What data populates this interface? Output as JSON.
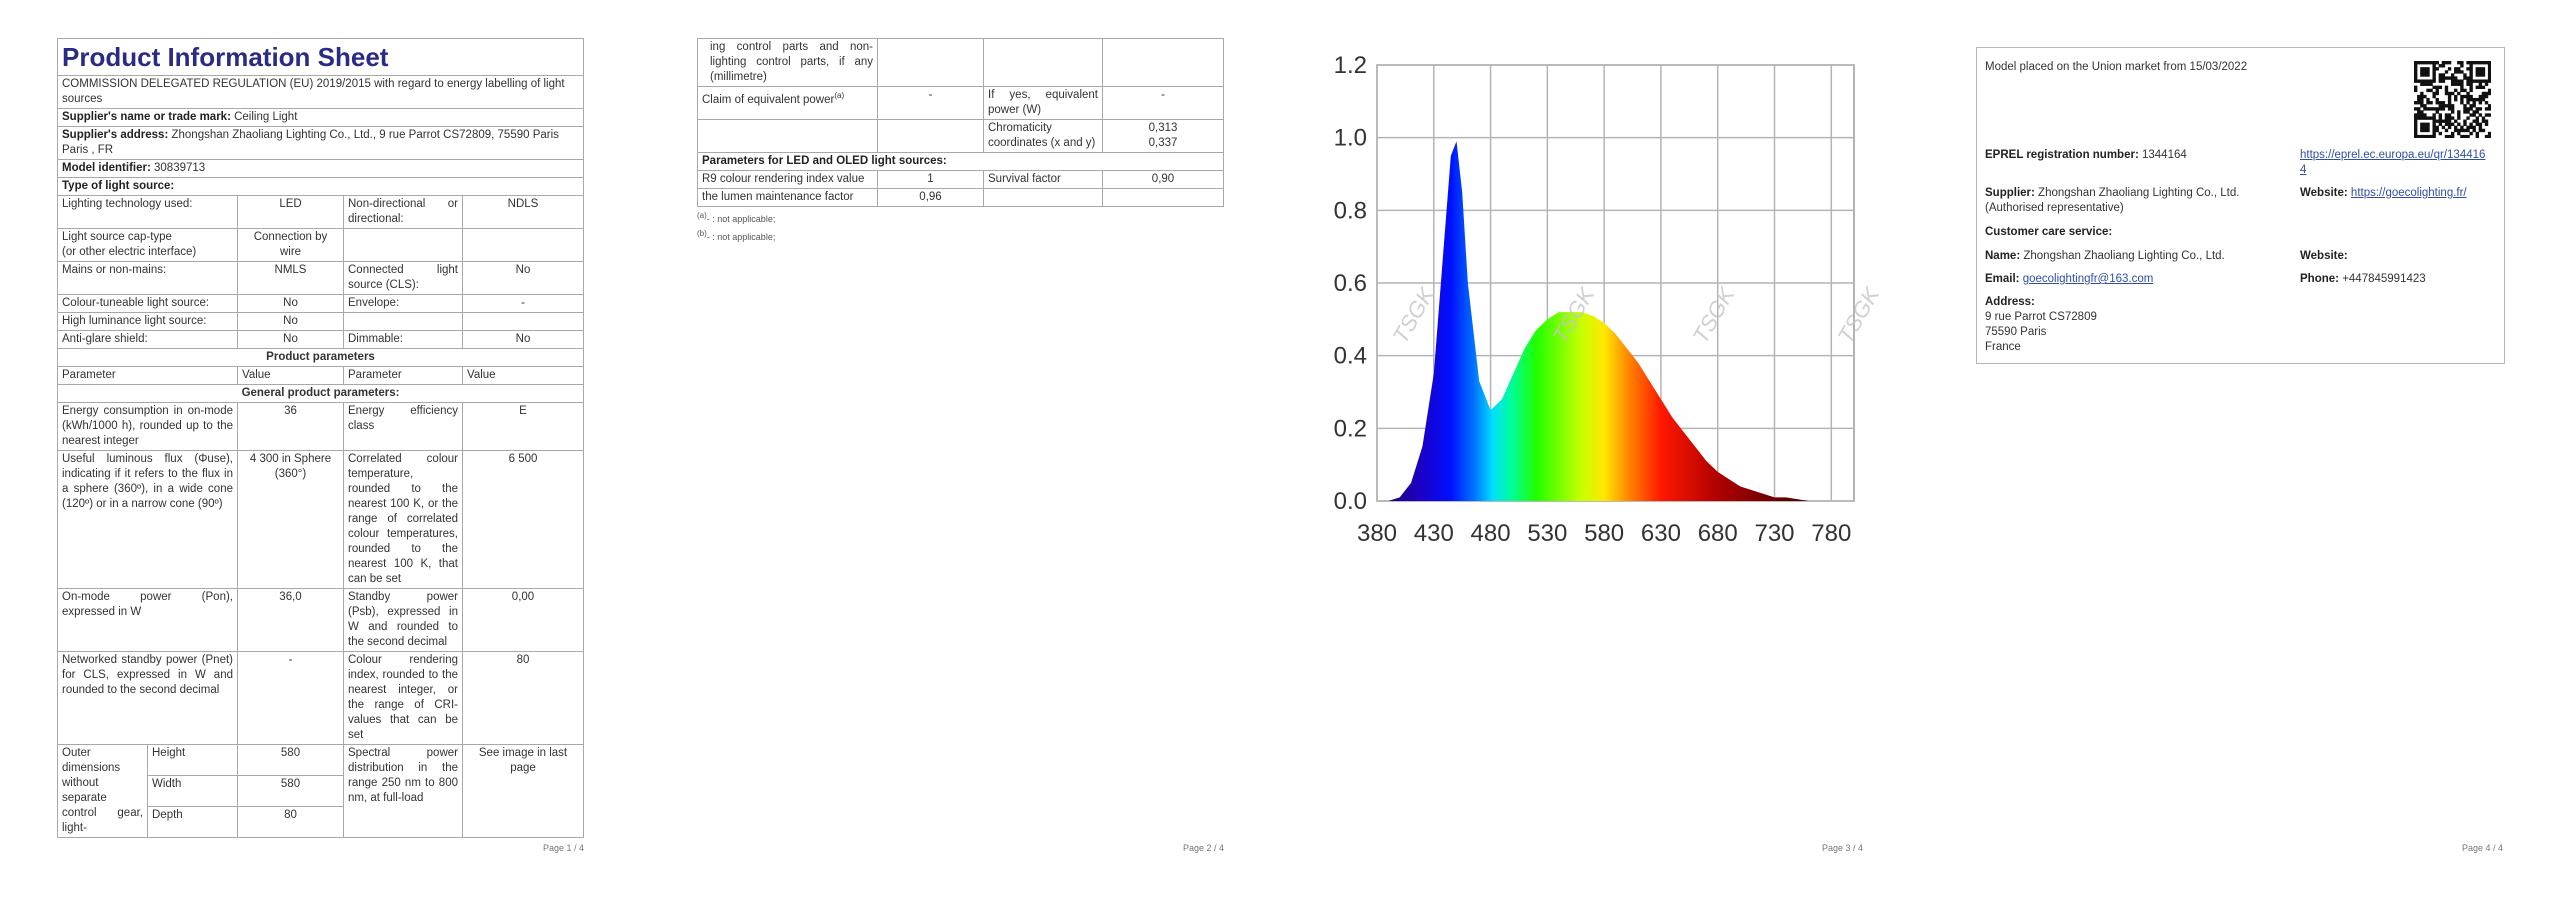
{
  "page1": {
    "title": "Product Information Sheet",
    "regulation": "COMMISSION DELEGATED REGULATION (EU) 2019/2015 with regard to energy labelling of light sources",
    "supplier": {
      "label": "Supplier's name or trade mark:",
      "value": "Ceiling Light"
    },
    "address": {
      "label": "Supplier's address:",
      "value": "Zhongshan Zhaoliang Lighting Co., Ltd., 9 rue Parrot CS72809, 75590 Paris Paris , FR"
    },
    "model": {
      "label": "Model identifier:",
      "value": "30839713"
    },
    "type_heading": "Type of light source:",
    "type_rows": [
      [
        "Lighting technology used:",
        "LED",
        "Non-directional or directional:",
        "NDLS"
      ],
      [
        "Light source cap-type\n(or other electric interface)",
        "Connection by wire"
      ],
      [
        "Mains or non-mains:",
        "NMLS",
        "Connected light source (CLS):",
        "No"
      ],
      [
        "Colour-tuneable light source:",
        "No",
        "Envelope:",
        "-"
      ],
      [
        "High luminance light source:",
        "No"
      ],
      [
        "Anti-glare shield:",
        "No",
        "Dimmable:",
        "No"
      ]
    ],
    "product_parameters": "Product parameters",
    "header": [
      "Parameter",
      "Value",
      "Parameter",
      "Value"
    ],
    "general_heading": "General product parameters:",
    "params": [
      [
        "Energy consumption in on-mode (kWh/1000 h), rounded up to the nearest integer",
        "36",
        "Energy efficiency class",
        "E"
      ],
      [
        "Useful luminous flux (Φuse), indicating if it refers to the flux in a sphere (360º), in a wide cone (120º) or in a narrow cone (90º)",
        "4 300 in Sphere (360°)",
        "Correlated colour temperature, rounded to the nearest 100 K, or the range of correlated colour temperatures, rounded to the nearest 100 K, that can be set",
        "6 500"
      ],
      [
        "On-mode power (Pon), expressed in W",
        "36,0",
        "Standby power (Psb), expressed in W and rounded to the second decimal",
        "0,00"
      ],
      [
        "Networked standby power (Pnet) for CLS, expressed in W and rounded to the second decimal",
        "-",
        "Colour rendering index, rounded to the nearest integer, or the range of CRI-values that can be set",
        "80"
      ]
    ],
    "dimensions": {
      "label": "Outer dimensions without separate control gear, light-",
      "rows": [
        [
          "Height",
          "580"
        ],
        [
          "Width",
          "580"
        ],
        [
          "Depth",
          "80"
        ]
      ],
      "spd_label": "Spectral power distribution in the range 250 nm to 800 nm, at full-load",
      "spd_value": "See image in last page"
    }
  },
  "page2": {
    "dimensions_cont": "ing control parts and non-lighting control parts, if any (millimetre)",
    "claim": [
      "Claim of equivalent power",
      "-",
      "If yes, equivalent power (W)",
      "-"
    ],
    "claim_note": "(a)",
    "chromaticity_label": "Chromaticity coordinates (x and y)",
    "chromaticity_values": [
      "0,313",
      "0,337"
    ],
    "led_heading": "Parameters for LED and OLED light sources:",
    "led_rows": [
      [
        "R9 colour rendering index value",
        "1",
        "Survival factor",
        "0,90"
      ],
      [
        "the lumen maintenance factor",
        "0,96"
      ]
    ],
    "footnotes": [
      {
        "mark": "(a)",
        "text": "- : not applicable;"
      },
      {
        "mark": "(b)",
        "text": "- : not applicable;"
      }
    ]
  },
  "chart_data": {
    "type": "area",
    "x": [
      380,
      390,
      400,
      410,
      420,
      430,
      440,
      445,
      450,
      455,
      460,
      470,
      480,
      490,
      500,
      510,
      520,
      530,
      540,
      550,
      560,
      570,
      580,
      590,
      600,
      610,
      620,
      630,
      640,
      650,
      660,
      670,
      680,
      690,
      700,
      710,
      720,
      730,
      740,
      750,
      760
    ],
    "values": [
      0,
      0,
      0.01,
      0.05,
      0.15,
      0.35,
      0.75,
      0.95,
      0.99,
      0.85,
      0.6,
      0.33,
      0.25,
      0.28,
      0.35,
      0.42,
      0.47,
      0.5,
      0.52,
      0.52,
      0.52,
      0.51,
      0.49,
      0.46,
      0.42,
      0.38,
      0.33,
      0.28,
      0.23,
      0.19,
      0.15,
      0.11,
      0.08,
      0.06,
      0.04,
      0.03,
      0.02,
      0.01,
      0.01,
      0.005,
      0
    ],
    "xlim": [
      380,
      800
    ],
    "ylim": [
      0,
      1.2
    ],
    "xticks": [
      380,
      430,
      480,
      530,
      580,
      630,
      680,
      730,
      780
    ],
    "yticks": [
      {
        "value": 0,
        "label": "0.0"
      },
      0.2,
      0.4,
      0.6,
      0.8,
      {
        "value": 1,
        "label": "1.0"
      },
      1.2
    ],
    "grid": true,
    "watermark": "TSGK"
  },
  "page4": {
    "market": "Model placed on the Union market from 15/03/2022",
    "eprel": {
      "label": "EPREL registration number:",
      "value": "1344164",
      "link": "https://eprel.ec.europa.eu/qr/1344164"
    },
    "supplier": {
      "label": "Supplier:",
      "value": "Zhongshan Zhaoliang Lighting Co., Ltd. (Authorised representative)"
    },
    "website": {
      "label": "Website:",
      "value": "https://goecolighting.fr/"
    },
    "care_heading": "Customer care service:",
    "name": {
      "label": "Name:",
      "value": "Zhongshan Zhaoliang Lighting Co., Ltd."
    },
    "care_website": {
      "label": "Website:"
    },
    "email": {
      "label": "Email:",
      "value": "goecolightingfr@163.com"
    },
    "phone": {
      "label": "Phone:",
      "value": "+447845991423"
    },
    "address": {
      "label": "Address:",
      "lines": [
        "9 rue Parrot CS72809",
        "75590 Paris",
        "France"
      ]
    }
  },
  "footers": [
    "Page 1 / 4",
    "Page 2 / 4",
    "Page 3 / 4",
    "Page 4 / 4"
  ]
}
